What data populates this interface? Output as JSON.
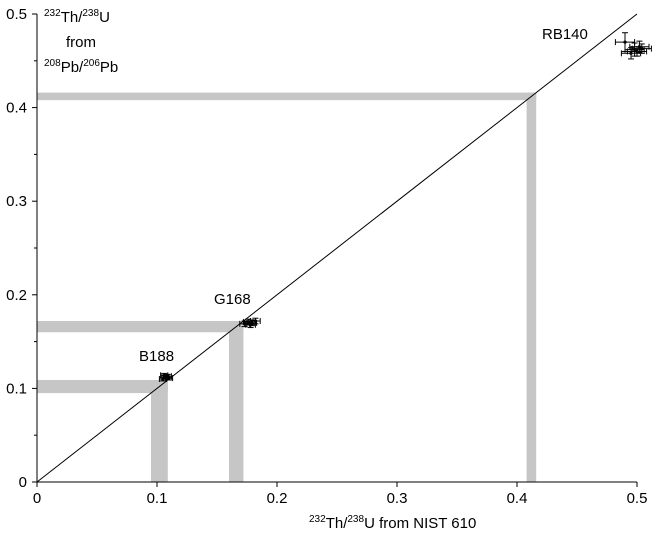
{
  "chart_data": {
    "type": "scatter",
    "xlabel": {
      "sup1": "232",
      "el1": "Th/",
      "sup2": "238",
      "el2": "U from NIST 610"
    },
    "ylabel": {
      "line1_sup1": "232",
      "line1_el1": "Th/",
      "line1_sup2": "238",
      "line1_el2": "U",
      "line2": "from",
      "line3_sup1": "208",
      "line3_el1": "Pb/",
      "line3_sup2": "206",
      "line3_el2": "Pb"
    },
    "xlim": [
      0,
      0.5
    ],
    "ylim": [
      0,
      0.5
    ],
    "x_ticks": [
      "0",
      "0.1",
      "0.2",
      "0.3",
      "0.4",
      "0.5"
    ],
    "y_ticks": [
      "0",
      "0.1",
      "0.2",
      "0.3",
      "0.4",
      "0.5"
    ],
    "grid": false,
    "reference_line": {
      "x": [
        0,
        0.5
      ],
      "y": [
        0,
        0.5
      ]
    },
    "bands": [
      {
        "lo": 0.095,
        "hi": 0.109
      },
      {
        "lo": 0.16,
        "hi": 0.172
      },
      {
        "lo": 0.408,
        "hi": 0.416
      }
    ],
    "groups": [
      {
        "label": "B188",
        "points": [
          {
            "x": 0.105,
            "y": 0.11,
            "xerr": 0.003,
            "yerr": 0.002
          },
          {
            "x": 0.107,
            "y": 0.112,
            "xerr": 0.003,
            "yerr": 0.002
          },
          {
            "x": 0.109,
            "y": 0.113,
            "xerr": 0.003,
            "yerr": 0.002
          },
          {
            "x": 0.106,
            "y": 0.114,
            "xerr": 0.003,
            "yerr": 0.002
          },
          {
            "x": 0.11,
            "y": 0.111,
            "xerr": 0.003,
            "yerr": 0.002
          }
        ]
      },
      {
        "label": "G168",
        "points": [
          {
            "x": 0.173,
            "y": 0.169,
            "xerr": 0.004,
            "yerr": 0.003
          },
          {
            "x": 0.176,
            "y": 0.171,
            "xerr": 0.004,
            "yerr": 0.003
          },
          {
            "x": 0.179,
            "y": 0.17,
            "xerr": 0.004,
            "yerr": 0.003
          },
          {
            "x": 0.182,
            "y": 0.172,
            "xerr": 0.004,
            "yerr": 0.003
          },
          {
            "x": 0.178,
            "y": 0.168,
            "xerr": 0.004,
            "yerr": 0.003
          }
        ]
      },
      {
        "label": "RB140",
        "points": [
          {
            "x": 0.49,
            "y": 0.47,
            "xerr": 0.008,
            "yerr": 0.01
          },
          {
            "x": 0.495,
            "y": 0.458,
            "xerr": 0.008,
            "yerr": 0.006
          },
          {
            "x": 0.498,
            "y": 0.462,
            "xerr": 0.008,
            "yerr": 0.007
          },
          {
            "x": 0.502,
            "y": 0.465,
            "xerr": 0.008,
            "yerr": 0.006
          },
          {
            "x": 0.5,
            "y": 0.46,
            "xerr": 0.008,
            "yerr": 0.005
          },
          {
            "x": 0.504,
            "y": 0.463,
            "xerr": 0.008,
            "yerr": 0.005
          }
        ]
      }
    ]
  }
}
